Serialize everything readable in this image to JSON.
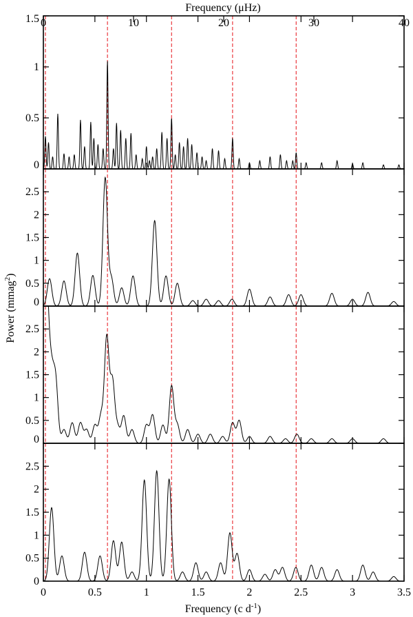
{
  "chart_data": {
    "type": "line",
    "top_axis": {
      "label": "Frequency (μHz)",
      "range": [
        0,
        40
      ],
      "ticks": [
        "0",
        "10",
        "20",
        "30",
        "40"
      ]
    },
    "bottom_axis": {
      "label": "Frequency (c d",
      "label_superscript": "-1",
      "label_close": ")",
      "range": [
        0,
        3.5
      ],
      "ticks": [
        "0",
        "0.5",
        "1",
        "1.5",
        "2",
        "2.5",
        "3",
        "3.5"
      ]
    },
    "y_axis": {
      "label": "Power (mmag",
      "label_superscript": "2",
      "label_close": ")"
    },
    "reference_lines": {
      "color": "#e8252b",
      "x": [
        0.02,
        0.622,
        1.244,
        1.836,
        2.453
      ]
    },
    "series_color": "#000000",
    "panels": [
      {
        "ylim": [
          0,
          1.5
        ],
        "yticks": [
          "0",
          "0.5",
          "1",
          "1.5"
        ],
        "peaks": [
          [
            0.02,
            0.32
          ],
          [
            0.05,
            0.26
          ],
          [
            0.09,
            0.12
          ],
          [
            0.14,
            0.54
          ],
          [
            0.2,
            0.15
          ],
          [
            0.25,
            0.12
          ],
          [
            0.3,
            0.14
          ],
          [
            0.36,
            0.48
          ],
          [
            0.4,
            0.22
          ],
          [
            0.46,
            0.46
          ],
          [
            0.49,
            0.3
          ],
          [
            0.53,
            0.24
          ],
          [
            0.58,
            0.2
          ],
          [
            0.622,
            1.06
          ],
          [
            0.68,
            0.2
          ],
          [
            0.71,
            0.45
          ],
          [
            0.75,
            0.38
          ],
          [
            0.8,
            0.3
          ],
          [
            0.85,
            0.35
          ],
          [
            0.9,
            0.14
          ],
          [
            0.96,
            0.1
          ],
          [
            1.0,
            0.22
          ],
          [
            1.03,
            0.08
          ],
          [
            1.06,
            0.12
          ],
          [
            1.1,
            0.2
          ],
          [
            1.15,
            0.36
          ],
          [
            1.2,
            0.3
          ],
          [
            1.244,
            0.5
          ],
          [
            1.28,
            0.14
          ],
          [
            1.32,
            0.26
          ],
          [
            1.36,
            0.22
          ],
          [
            1.4,
            0.3
          ],
          [
            1.44,
            0.24
          ],
          [
            1.49,
            0.16
          ],
          [
            1.54,
            0.12
          ],
          [
            1.58,
            0.08
          ],
          [
            1.64,
            0.2
          ],
          [
            1.7,
            0.18
          ],
          [
            1.76,
            0.1
          ],
          [
            1.836,
            0.3
          ],
          [
            1.9,
            0.1
          ],
          [
            2.0,
            0.06
          ],
          [
            2.1,
            0.08
          ],
          [
            2.2,
            0.12
          ],
          [
            2.3,
            0.14
          ],
          [
            2.36,
            0.08
          ],
          [
            2.42,
            0.08
          ],
          [
            2.453,
            0.16
          ],
          [
            2.55,
            0.06
          ],
          [
            2.7,
            0.06
          ],
          [
            2.85,
            0.08
          ],
          [
            3.0,
            0.05
          ],
          [
            3.1,
            0.06
          ],
          [
            3.3,
            0.04
          ],
          [
            3.45,
            0.04
          ]
        ]
      },
      {
        "ylim": [
          0,
          3.0
        ],
        "yticks": [
          "0",
          "0.5",
          "1",
          "1.5",
          "2",
          "2.5"
        ],
        "peaks": [
          [
            0.06,
            0.6
          ],
          [
            0.2,
            0.55
          ],
          [
            0.33,
            1.16
          ],
          [
            0.48,
            0.67
          ],
          [
            0.6,
            2.8
          ],
          [
            0.66,
            0.6
          ],
          [
            0.76,
            0.4
          ],
          [
            0.87,
            0.66
          ],
          [
            1.08,
            1.87
          ],
          [
            1.19,
            0.66
          ],
          [
            1.3,
            0.5
          ],
          [
            1.45,
            0.12
          ],
          [
            1.58,
            0.15
          ],
          [
            1.7,
            0.12
          ],
          [
            1.83,
            0.15
          ],
          [
            2.0,
            0.37
          ],
          [
            2.2,
            0.2
          ],
          [
            2.38,
            0.25
          ],
          [
            2.5,
            0.25
          ],
          [
            2.8,
            0.28
          ],
          [
            3.0,
            0.15
          ],
          [
            3.15,
            0.3
          ],
          [
            3.4,
            0.1
          ]
        ]
      },
      {
        "ylim": [
          0,
          3.0
        ],
        "yticks": [
          "0",
          "0.5",
          "1",
          "1.5",
          "2",
          "2.5"
        ],
        "peaks": [
          [
            0.01,
            2.9
          ],
          [
            0.04,
            2.1
          ],
          [
            0.08,
            1.3
          ],
          [
            0.12,
            1.3
          ],
          [
            0.2,
            0.3
          ],
          [
            0.28,
            0.45
          ],
          [
            0.36,
            0.45
          ],
          [
            0.42,
            0.3
          ],
          [
            0.5,
            0.4
          ],
          [
            0.56,
            0.6
          ],
          [
            0.615,
            2.3
          ],
          [
            0.67,
            1.35
          ],
          [
            0.72,
            0.35
          ],
          [
            0.78,
            0.6
          ],
          [
            0.86,
            0.3
          ],
          [
            1.0,
            0.4
          ],
          [
            1.06,
            0.62
          ],
          [
            1.16,
            0.4
          ],
          [
            1.244,
            1.25
          ],
          [
            1.3,
            0.4
          ],
          [
            1.4,
            0.3
          ],
          [
            1.5,
            0.2
          ],
          [
            1.62,
            0.2
          ],
          [
            1.74,
            0.15
          ],
          [
            1.836,
            0.45
          ],
          [
            1.9,
            0.5
          ],
          [
            2.0,
            0.15
          ],
          [
            2.2,
            0.15
          ],
          [
            2.35,
            0.1
          ],
          [
            2.46,
            0.2
          ],
          [
            2.6,
            0.1
          ],
          [
            2.8,
            0.1
          ],
          [
            3.0,
            0.1
          ],
          [
            3.3,
            0.1
          ]
        ]
      },
      {
        "ylim": [
          0,
          3.0
        ],
        "yticks": [
          "0",
          "0.5",
          "1",
          "1.5",
          "2",
          "2.5"
        ],
        "peaks": [
          [
            0.08,
            1.6
          ],
          [
            0.18,
            0.55
          ],
          [
            0.4,
            0.63
          ],
          [
            0.55,
            0.55
          ],
          [
            0.68,
            0.88
          ],
          [
            0.76,
            0.85
          ],
          [
            0.86,
            0.2
          ],
          [
            0.98,
            2.2
          ],
          [
            1.1,
            2.4
          ],
          [
            1.22,
            2.22
          ],
          [
            1.35,
            0.2
          ],
          [
            1.48,
            0.4
          ],
          [
            1.58,
            0.2
          ],
          [
            1.72,
            0.4
          ],
          [
            1.81,
            1.05
          ],
          [
            1.88,
            0.6
          ],
          [
            2.0,
            0.25
          ],
          [
            2.15,
            0.15
          ],
          [
            2.25,
            0.25
          ],
          [
            2.32,
            0.3
          ],
          [
            2.45,
            0.3
          ],
          [
            2.6,
            0.35
          ],
          [
            2.7,
            0.3
          ],
          [
            2.85,
            0.25
          ],
          [
            3.1,
            0.35
          ],
          [
            3.2,
            0.2
          ],
          [
            3.4,
            0.1
          ]
        ]
      }
    ]
  }
}
